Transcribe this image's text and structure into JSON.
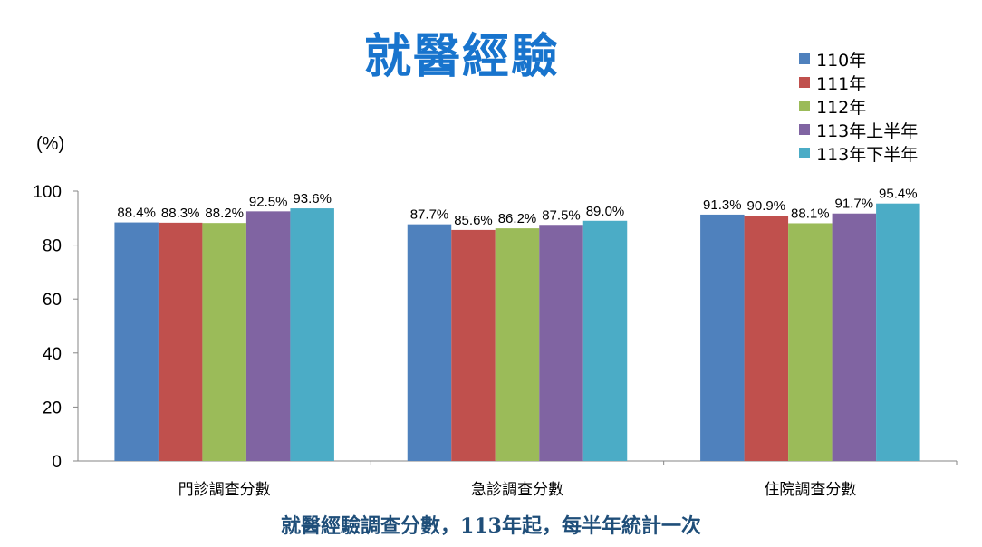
{
  "title": "就醫經驗",
  "footnote": "就醫經驗調查分數，113年起，每半年統計一次",
  "chart_data": {
    "type": "bar",
    "ylabel": "(%)",
    "xlabel": "",
    "ylim": [
      0,
      100
    ],
    "yticks": [
      0,
      20,
      40,
      60,
      80,
      100
    ],
    "grid": false,
    "legend_position": "top-right",
    "categories": [
      "門診調查分數",
      "急診調查分數",
      "住院調查分數"
    ],
    "series": [
      {
        "name": "110年",
        "color": "#4f81bd",
        "values": [
          88.4,
          87.7,
          91.3
        ],
        "labels": [
          "88.4%",
          "87.7%",
          "91.3%"
        ]
      },
      {
        "name": "111年",
        "color": "#c0504d",
        "values": [
          88.3,
          85.6,
          90.9
        ],
        "labels": [
          "88.3%",
          "85.6%",
          "90.9%"
        ]
      },
      {
        "name": "112年",
        "color": "#9bbb59",
        "values": [
          88.2,
          86.2,
          88.1
        ],
        "labels": [
          "88.2%",
          "86.2%",
          "88.1%"
        ]
      },
      {
        "name": "113年上半年",
        "color": "#8064a2",
        "values": [
          92.5,
          87.5,
          91.7
        ],
        "labels": [
          "92.5%",
          "87.5%",
          "91.7%"
        ]
      },
      {
        "name": "113年下半年",
        "color": "#4bacc6",
        "values": [
          93.6,
          89.0,
          95.4
        ],
        "labels": [
          "93.6%",
          "89.0%",
          "95.4%"
        ]
      }
    ]
  }
}
